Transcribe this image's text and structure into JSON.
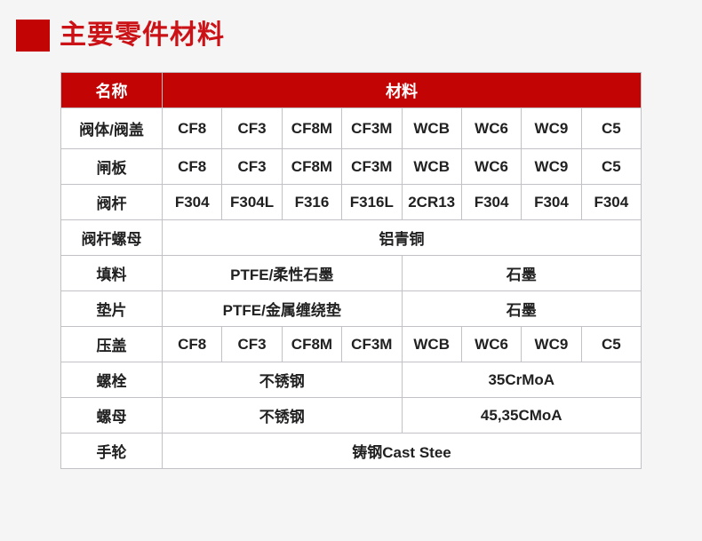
{
  "colors": {
    "brand_red": "#c20404",
    "title_red": "#cb1216",
    "page_background": "#f5f5f6",
    "cell_text": "#212121",
    "header_text": "#ffffff"
  },
  "header": {
    "title": "主要零件材料"
  },
  "table": {
    "columns": {
      "name_header": "名称",
      "material_header": "材料"
    },
    "rows": [
      {
        "name": "阀体/阀盖",
        "values": [
          "CF8",
          "CF3",
          "CF8M",
          "CF3M",
          "WCB",
          "WC6",
          "WC9",
          "C5"
        ]
      },
      {
        "name": "闸板",
        "values": [
          "CF8",
          "CF3",
          "CF8M",
          "CF3M",
          "WCB",
          "WC6",
          "WC9",
          "C5"
        ]
      },
      {
        "name": "阀杆",
        "values": [
          "F304",
          "F304L",
          "F316",
          "F316L",
          "2CR13",
          "F304",
          "F304",
          "F304"
        ]
      },
      {
        "name": "阀杆螺母",
        "values": [
          "铝青铜"
        ]
      },
      {
        "name": "填料",
        "values": [
          "PTFE/柔性石墨",
          "石墨"
        ]
      },
      {
        "name": "垫片",
        "values": [
          "PTFE/金属缠绕垫",
          "石墨"
        ]
      },
      {
        "name": "压盖",
        "values": [
          "CF8",
          "CF3",
          "CF8M",
          "CF3M",
          "WCB",
          "WC6",
          "WC9",
          "C5"
        ]
      },
      {
        "name": "螺栓",
        "values": [
          "不锈钢",
          "35CrMoA"
        ]
      },
      {
        "name": "螺母",
        "values": [
          "不锈钢",
          "45,35CMoA"
        ]
      },
      {
        "name": "手轮",
        "values": [
          "铸钢Cast Stee"
        ]
      }
    ]
  }
}
